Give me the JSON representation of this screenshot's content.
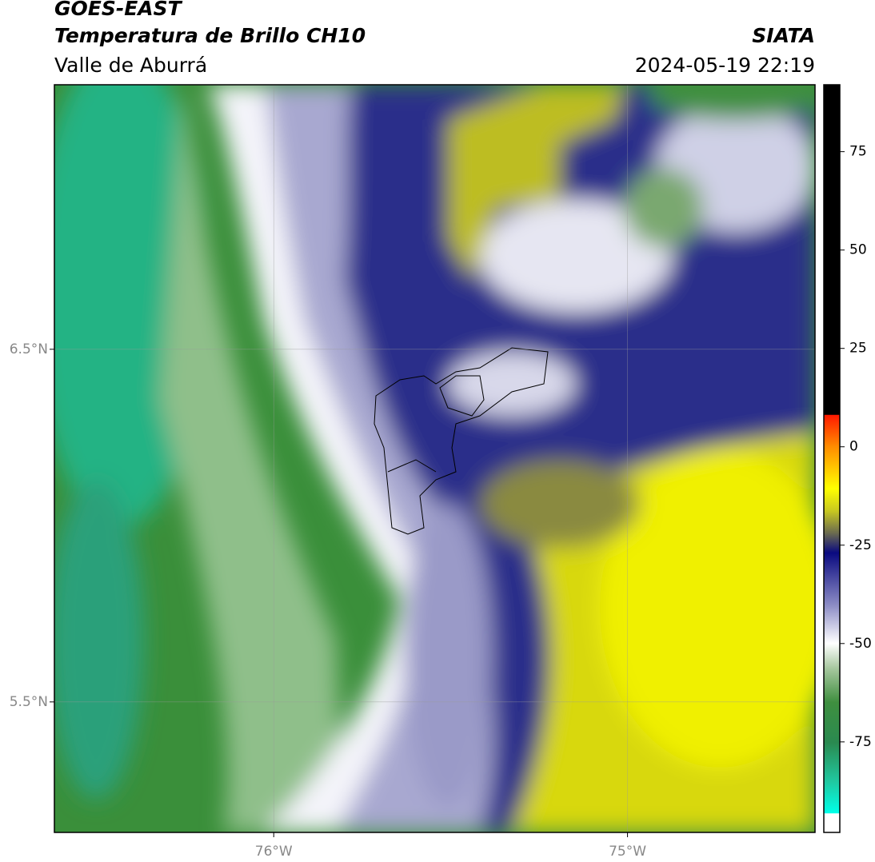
{
  "header": {
    "title": "GOES-EAST",
    "subtitle": "Temperatura de Brillo CH10",
    "region": "Valle de Aburrá",
    "source": "SIATA",
    "datetime": "2024-05-19 22:19"
  },
  "map": {
    "xlim": [
      -76.62,
      -74.47
    ],
    "ylim": [
      5.13,
      7.25
    ],
    "xticks": [
      {
        "value": -76,
        "label": "76°W"
      },
      {
        "value": -75,
        "label": "75°W"
      }
    ],
    "yticks": [
      {
        "value": 5.5,
        "label": "5.5°N"
      },
      {
        "value": 6.5,
        "label": "6.5°N"
      }
    ],
    "grid": true
  },
  "colorbar": {
    "ylim": [
      -98,
      92
    ],
    "yticks": [
      -75,
      -50,
      -25,
      0,
      25,
      50,
      75
    ]
  }
}
